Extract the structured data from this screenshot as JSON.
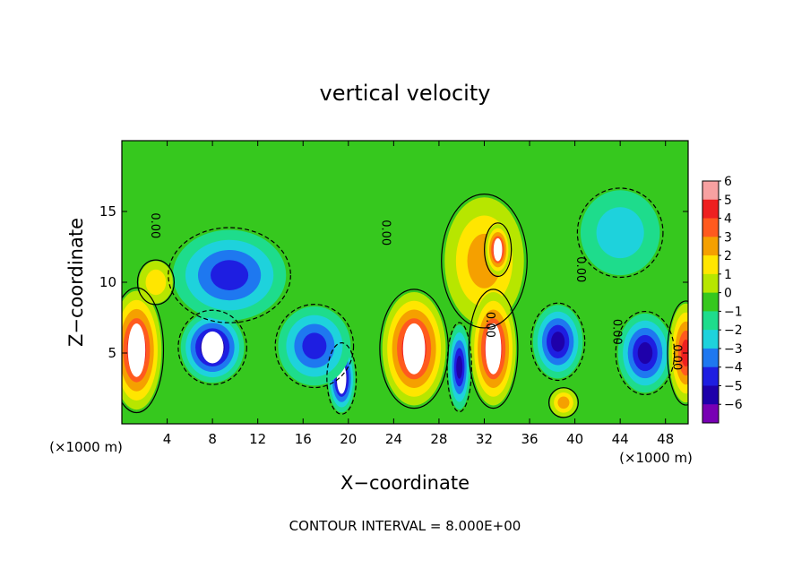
{
  "chart_data": {
    "type": "heatmap",
    "title": "vertical velocity",
    "xlabel": "X−coordinate",
    "ylabel": "Z−coordinate",
    "x_unit_left": "(×1000 m)",
    "x_unit_right": "(×1000 m)",
    "footer": "CONTOUR INTERVAL = 8.000E+00",
    "xlim": [
      0,
      50
    ],
    "ylim": [
      0,
      20
    ],
    "x_ticks": [
      4,
      8,
      12,
      16,
      20,
      24,
      28,
      32,
      36,
      40,
      44,
      48
    ],
    "y_ticks": [
      5,
      10,
      15
    ],
    "colorbar": {
      "ticks": [
        {
          "value": 6,
          "label": "6"
        },
        {
          "value": 5,
          "label": "5"
        },
        {
          "value": 4,
          "label": "4"
        },
        {
          "value": 3,
          "label": "3"
        },
        {
          "value": 2,
          "label": "2"
        },
        {
          "value": 1,
          "label": "1"
        },
        {
          "value": 0,
          "label": "0"
        },
        {
          "value": -1,
          "label": "−1"
        },
        {
          "value": -2,
          "label": "−2"
        },
        {
          "value": -3,
          "label": "−3"
        },
        {
          "value": -4,
          "label": "−4"
        },
        {
          "value": -5,
          "label": "−5"
        },
        {
          "value": -6,
          "label": "−6"
        }
      ],
      "colors": [
        "#f7a1a1",
        "#ee2020",
        "#ff5a1e",
        "#f5a000",
        "#ffe600",
        "#b7e600",
        "#36c81e",
        "#1edc8c",
        "#1ed2dc",
        "#1e78f0",
        "#1e1ee1",
        "#1e00aa",
        "#7800b4"
      ]
    },
    "contour_labels": [
      {
        "text": "0.00",
        "x": 2.6,
        "y": 14.0,
        "angle": 90
      },
      {
        "text": "0.00",
        "x": 23.0,
        "y": 13.5,
        "angle": 90
      },
      {
        "text": "0.00",
        "x": 32.2,
        "y": 7.0,
        "angle": 90
      },
      {
        "text": "0.00",
        "x": 40.2,
        "y": 10.9,
        "angle": 90
      },
      {
        "text": "0.00",
        "x": 43.4,
        "y": 6.5,
        "angle": 90
      },
      {
        "text": "0.00",
        "x": 48.7,
        "y": 4.7,
        "angle": 90
      }
    ],
    "features": [
      {
        "value": 6,
        "cx": 1.3,
        "cy": 5.2,
        "rx": 2.2,
        "ry": 4.2
      },
      {
        "value": -6,
        "cx": 8.0,
        "cy": 5.4,
        "rx": 2.8,
        "ry": 2.5
      },
      {
        "value": -4,
        "cx": 9.5,
        "cy": 10.5,
        "rx": 5.0,
        "ry": 3.2
      },
      {
        "value": -6,
        "cx": 19.4,
        "cy": 3.2,
        "rx": 1.2,
        "ry": 2.4
      },
      {
        "value": -4,
        "cx": 17.0,
        "cy": 5.5,
        "rx": 3.2,
        "ry": 2.8
      },
      {
        "value": 6,
        "cx": 25.8,
        "cy": 5.3,
        "rx": 2.8,
        "ry": 4.0
      },
      {
        "value": 3,
        "cx": 32.0,
        "cy": 11.5,
        "rx": 3.5,
        "ry": 4.5
      },
      {
        "value": 6,
        "cx": 33.2,
        "cy": 12.3,
        "rx": 1.1,
        "ry": 1.8
      },
      {
        "value": 6,
        "cx": 32.8,
        "cy": 5.3,
        "rx": 2.0,
        "ry": 4.0
      },
      {
        "value": -5,
        "cx": 29.8,
        "cy": 4.0,
        "rx": 1.0,
        "ry": 3.0
      },
      {
        "value": -5,
        "cx": 38.5,
        "cy": 5.8,
        "rx": 2.2,
        "ry": 2.6
      },
      {
        "value": -5,
        "cx": 46.2,
        "cy": 5.0,
        "rx": 2.4,
        "ry": 2.8
      },
      {
        "value": 5,
        "cx": 49.8,
        "cy": 5.0,
        "rx": 1.5,
        "ry": 3.5
      },
      {
        "value": -2,
        "cx": 44.0,
        "cy": 13.5,
        "rx": 3.5,
        "ry": 3.0
      },
      {
        "value": 2,
        "cx": 3.0,
        "cy": 10.0,
        "rx": 1.5,
        "ry": 1.5
      },
      {
        "value": 3,
        "cx": 39.0,
        "cy": 1.5,
        "rx": 1.2,
        "ry": 1.0
      }
    ]
  }
}
